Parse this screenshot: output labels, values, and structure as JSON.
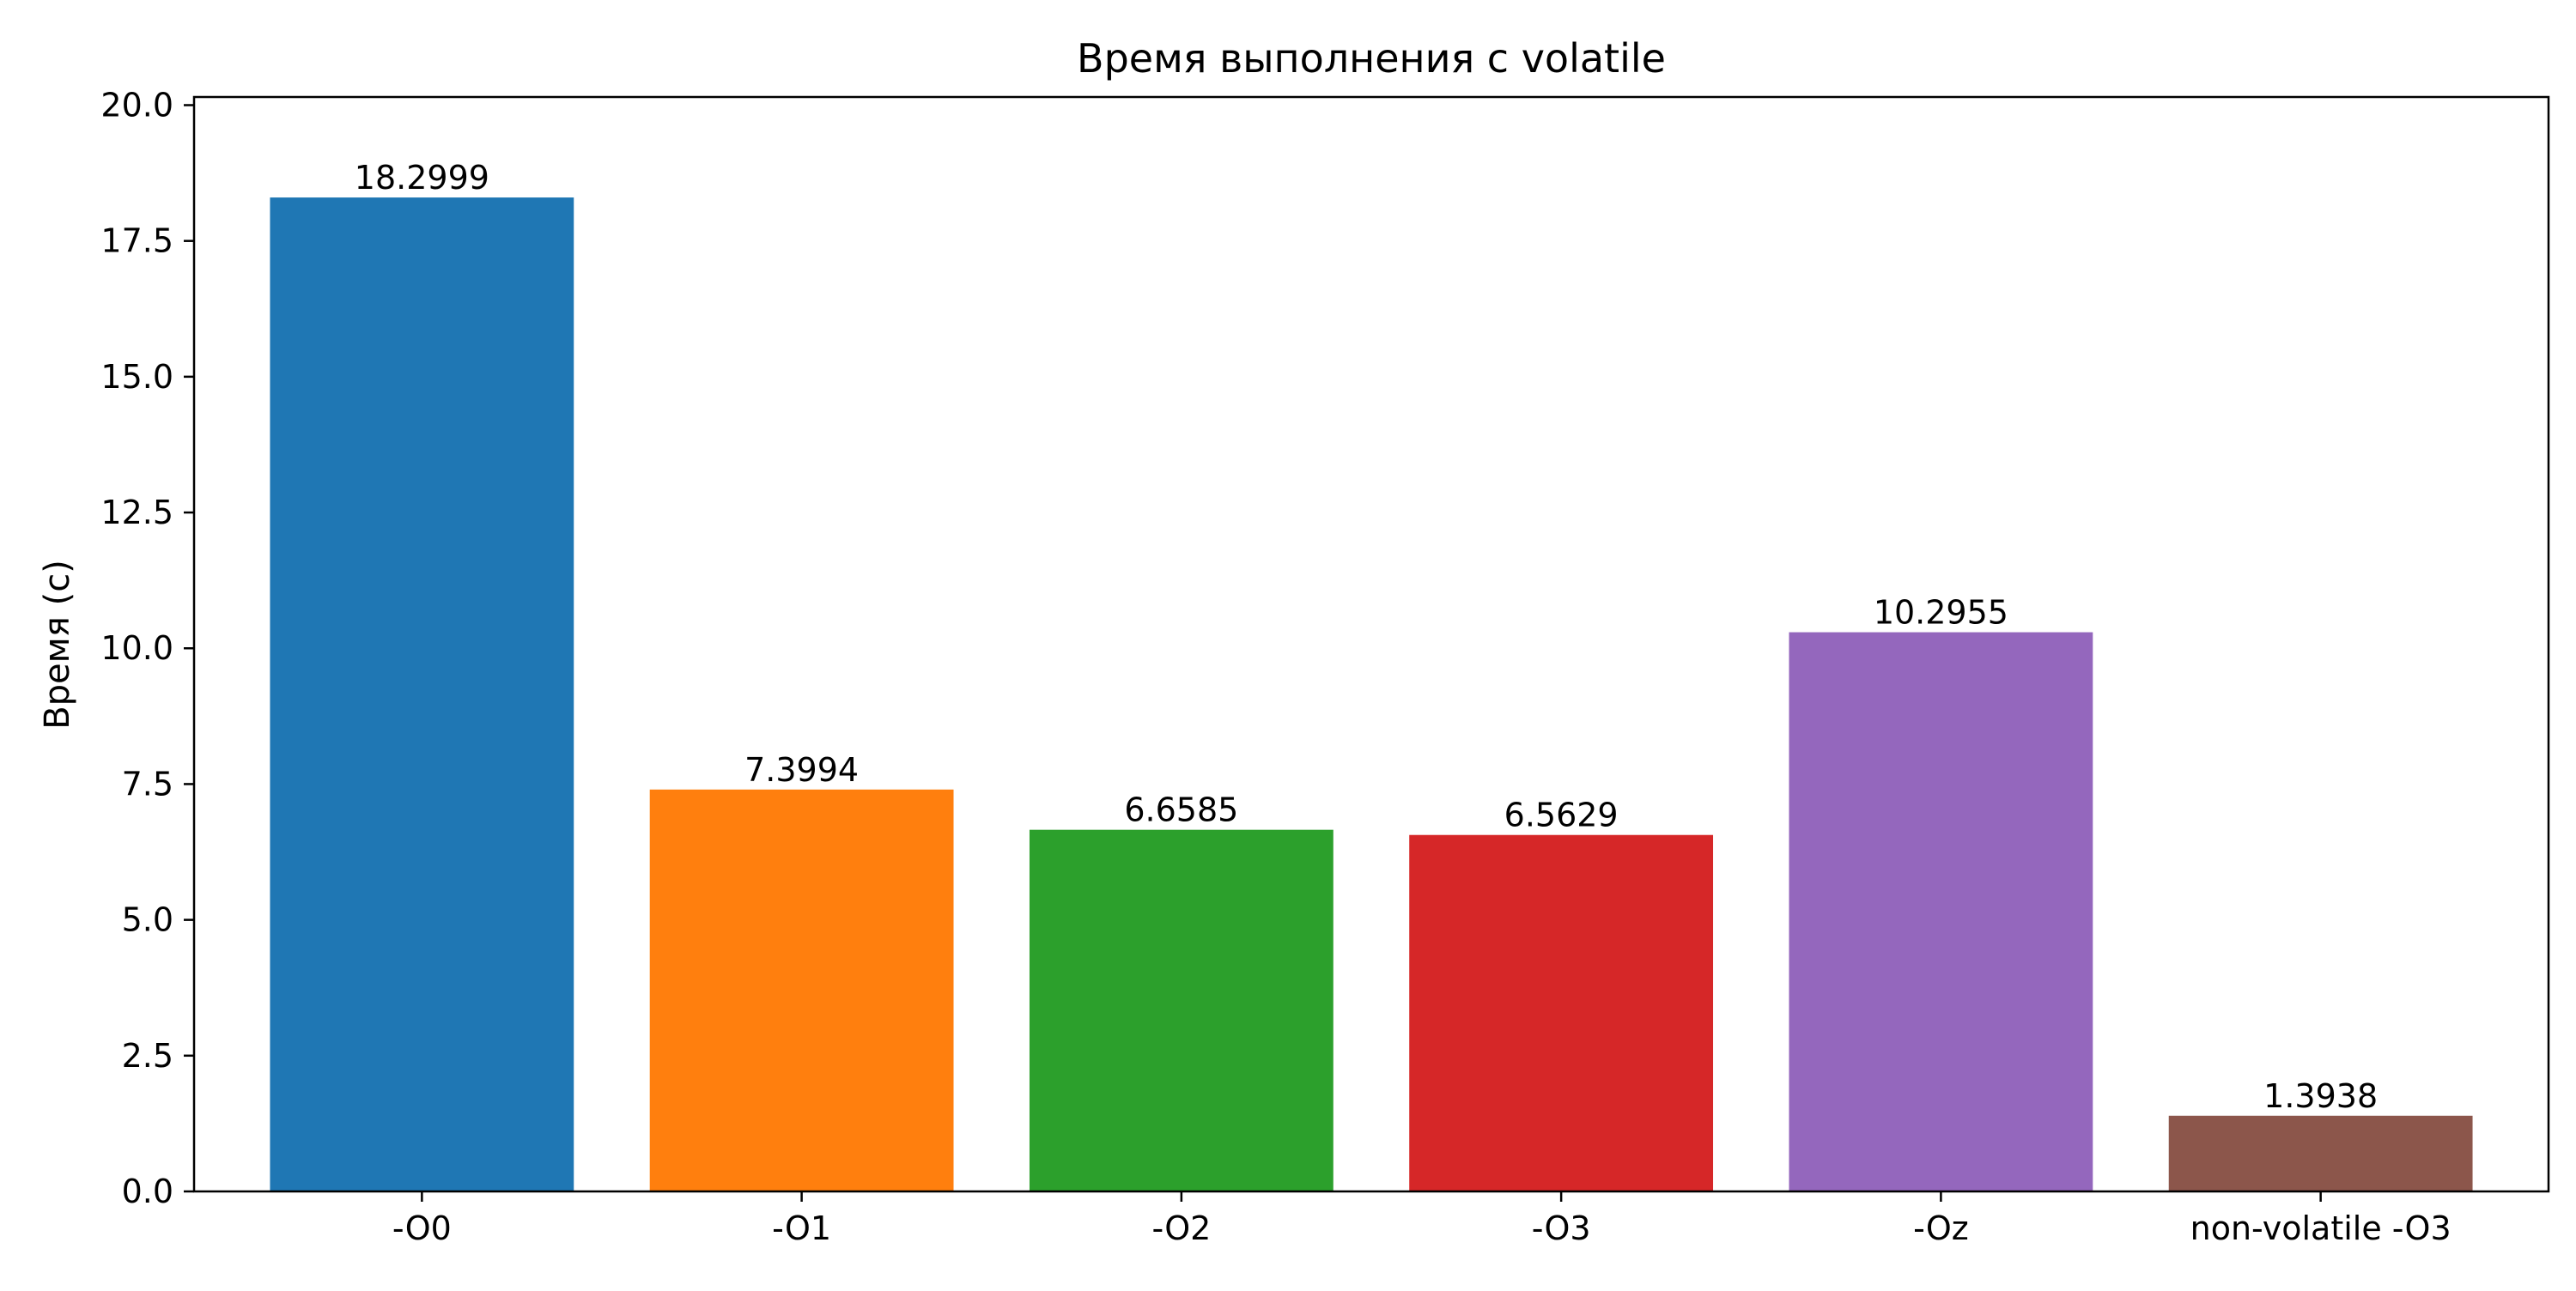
{
  "chart_data": {
    "type": "bar",
    "title": "Время выполнения с volatile",
    "xlabel": "",
    "ylabel": "Время (с)",
    "categories": [
      "-O0",
      "-O1",
      "-O2",
      "-O3",
      "-Oz",
      "non-volatile -O3"
    ],
    "values": [
      18.2999,
      7.3994,
      6.6585,
      6.5629,
      10.2955,
      1.3938
    ],
    "value_labels": [
      "18.2999",
      "7.3994",
      "6.6585",
      "6.5629",
      "10.2955",
      "1.3938"
    ],
    "colors": [
      "#1f77b4",
      "#ff7f0e",
      "#2ca02c",
      "#d62728",
      "#9467bd",
      "#8c564b"
    ],
    "ylim": [
      0,
      20.15
    ],
    "yticks": [
      0,
      2.5,
      5,
      7.5,
      10,
      12.5,
      15,
      17.5,
      20
    ],
    "ytick_labels": [
      "0.0",
      "2.5",
      "5.0",
      "7.5",
      "10.0",
      "12.5",
      "15.0",
      "17.5",
      "20.0"
    ],
    "grid": false,
    "legend": "none"
  }
}
